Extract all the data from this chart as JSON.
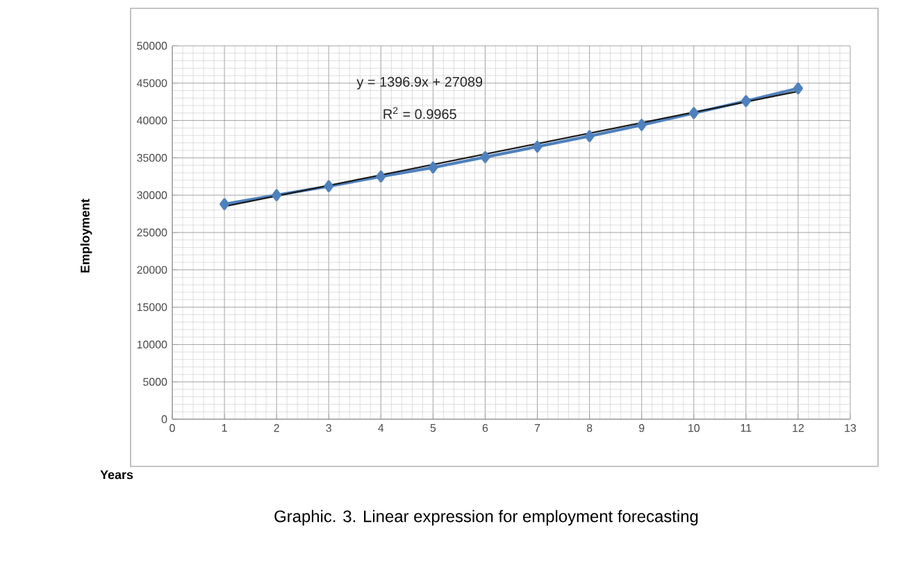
{
  "chart_data": {
    "type": "line",
    "xlabel": "Years",
    "ylabel": "Employment",
    "xlim": [
      0,
      13
    ],
    "xticks": [
      0,
      1,
      2,
      3,
      4,
      5,
      6,
      7,
      8,
      9,
      10,
      11,
      12,
      13
    ],
    "ylim": [
      0,
      50000
    ],
    "yticks": [
      0,
      5000,
      10000,
      15000,
      20000,
      25000,
      30000,
      35000,
      40000,
      45000,
      50000
    ],
    "x": [
      1,
      2,
      3,
      4,
      5,
      6,
      7,
      8,
      9,
      10,
      11,
      12
    ],
    "series": [
      {
        "color": "#4f81bd",
        "values": [
          28800,
          30000,
          31200,
          32500,
          33700,
          35100,
          36500,
          37900,
          39400,
          41000,
          42600,
          44300
        ],
        "marker": "diamond"
      },
      {
        "type": "line",
        "color": "#1a1a1a",
        "x": [
          1,
          12
        ],
        "values": [
          28500,
          43900
        ],
        "marker": "none"
      }
    ],
    "grid": true,
    "line_style": "solid",
    "annotations": [
      "y = 1396.9x + 27089",
      "R$^{2}$ = 0.9965",
      "Graphic. 3. Linear expression for employment forecasting"
    ]
  }
}
